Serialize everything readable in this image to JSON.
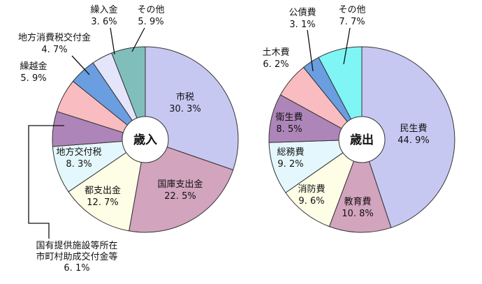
{
  "chart_data": [
    {
      "type": "pie",
      "center_label": "歳入",
      "slices": [
        {
          "name": "市税",
          "display": "30. 3%",
          "value": 30.3,
          "color": "#c7c8f2"
        },
        {
          "name": "国庫支出金",
          "display": "22. 5%",
          "value": 22.5,
          "color": "#d3a4be"
        },
        {
          "name": "都支出金",
          "display": "12. 7%",
          "value": 12.7,
          "color": "#fefde6"
        },
        {
          "name": "地方交付税",
          "display": "8. 3%",
          "value": 8.3,
          "color": "#e4f7fc"
        },
        {
          "name": "国有提供施設等所在市町村助成交付金等",
          "lines": [
            "国有提供施設等所在",
            "市町村助成交付金等"
          ],
          "display": "6. 1%",
          "value": 6.1,
          "color": "#ae85b9"
        },
        {
          "name": "繰越金",
          "display": "5. 9%",
          "value": 5.9,
          "color": "#f9bcc0"
        },
        {
          "name": "地方消費税交付金",
          "display": "4. 7%",
          "value": 4.7,
          "color": "#6a9ee0"
        },
        {
          "name": "繰入金",
          "display": "3. 6%",
          "value": 3.6,
          "color": "#e4e4fb"
        },
        {
          "name": "その他",
          "display": "5. 9%",
          "value": 5.9,
          "color": "#80bebb"
        }
      ]
    },
    {
      "type": "pie",
      "center_label": "歳出",
      "slices": [
        {
          "name": "民生費",
          "display": "44. 9%",
          "value": 44.9,
          "color": "#c7c8f2"
        },
        {
          "name": "教育費",
          "display": "10. 8%",
          "value": 10.8,
          "color": "#d3a4be"
        },
        {
          "name": "消防費",
          "display": "9. 6%",
          "value": 9.6,
          "color": "#fefde6"
        },
        {
          "name": "総務費",
          "display": "9. 2%",
          "value": 9.2,
          "color": "#e4f7fc"
        },
        {
          "name": "衛生費",
          "display": "8. 5%",
          "value": 8.5,
          "color": "#ae85b9"
        },
        {
          "name": "土木費",
          "display": "6. 2%",
          "value": 6.2,
          "color": "#f9bcc0"
        },
        {
          "name": "公債費",
          "display": "3. 1%",
          "value": 3.1,
          "color": "#6a9ee0"
        },
        {
          "name": "その他",
          "display": "7. 7%",
          "value": 7.7,
          "color": "#7ff5f5"
        }
      ]
    }
  ]
}
